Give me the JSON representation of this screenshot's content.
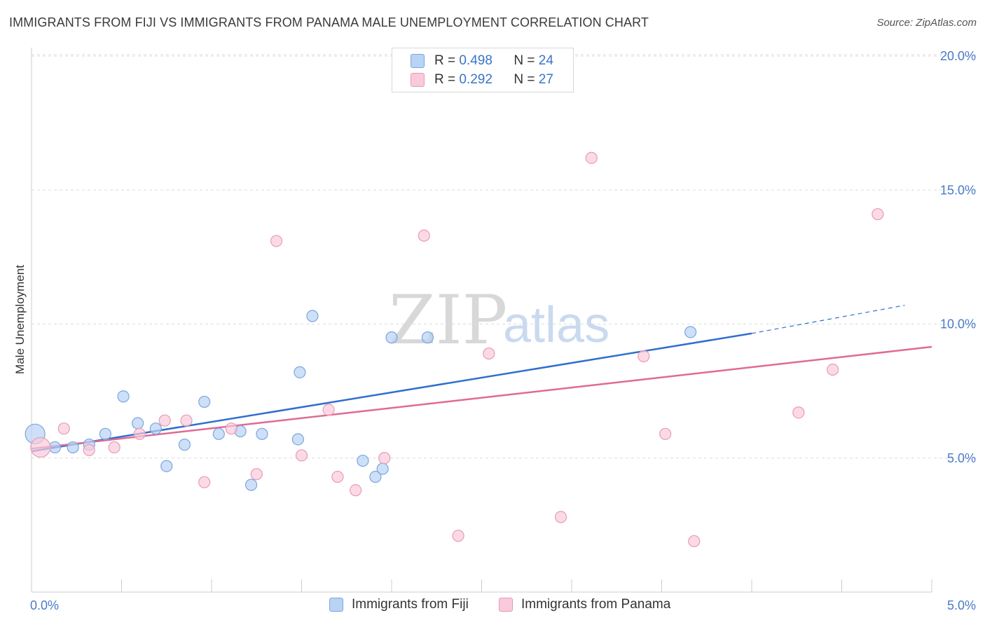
{
  "title": "IMMIGRANTS FROM FIJI VS IMMIGRANTS FROM PANAMA MALE UNEMPLOYMENT CORRELATION CHART",
  "source": "Source: ZipAtlas.com",
  "watermark": {
    "zip": "ZIP",
    "atlas": "atlas"
  },
  "legend": {
    "fiji": {
      "r_label": "R =",
      "r_value": "0.498",
      "n_label": "N =",
      "n_value": "24"
    },
    "panama": {
      "r_label": "R =",
      "r_value": "0.292",
      "n_label": "N =",
      "n_value": "27"
    }
  },
  "colors": {
    "fiji_fill": "#b8d3f3",
    "fiji_stroke": "#7aa6dc",
    "fiji_line": "#2f6fce",
    "panama_fill": "#f9cadb",
    "panama_stroke": "#e89ab5",
    "panama_line": "#e06a96",
    "grid": "#dcdcdc",
    "axis": "#cccccc"
  },
  "chart_data": {
    "type": "scatter",
    "title": "IMMIGRANTS FROM FIJI VS IMMIGRANTS FROM PANAMA MALE UNEMPLOYMENT CORRELATION CHART",
    "xlabel": "",
    "ylabel": "Male Unemployment",
    "xlim": [
      0,
      5
    ],
    "ylim": [
      0,
      20
    ],
    "x_tick_labels": [
      {
        "value": 0,
        "label": "0.0%"
      },
      {
        "value": 5,
        "label": "5.0%"
      }
    ],
    "y_tick_labels": [
      {
        "value": 5,
        "label": "5.0%"
      },
      {
        "value": 10,
        "label": "10.0%"
      },
      {
        "value": 15,
        "label": "15.0%"
      },
      {
        "value": 20,
        "label": "20.0%"
      }
    ],
    "series": [
      {
        "name": "Immigrants from Fiji",
        "r": 0.498,
        "n": 24,
        "trend": {
          "x0": 0.0,
          "y0": 5.25,
          "x1": 4.0,
          "y1": 9.65,
          "dash_to_x": 4.85,
          "dash_to_y": 10.7
        },
        "points": [
          {
            "x": 0.02,
            "y": 5.9,
            "big": true
          },
          {
            "x": 0.13,
            "y": 5.4
          },
          {
            "x": 0.23,
            "y": 5.4
          },
          {
            "x": 0.32,
            "y": 5.5
          },
          {
            "x": 0.41,
            "y": 5.9
          },
          {
            "x": 0.51,
            "y": 7.3
          },
          {
            "x": 0.59,
            "y": 6.3
          },
          {
            "x": 0.69,
            "y": 6.1
          },
          {
            "x": 0.75,
            "y": 4.7
          },
          {
            "x": 0.85,
            "y": 5.5
          },
          {
            "x": 0.96,
            "y": 7.1
          },
          {
            "x": 1.04,
            "y": 5.9
          },
          {
            "x": 1.16,
            "y": 6.0
          },
          {
            "x": 1.22,
            "y": 4.0
          },
          {
            "x": 1.28,
            "y": 5.9
          },
          {
            "x": 1.48,
            "y": 5.7
          },
          {
            "x": 1.49,
            "y": 8.2
          },
          {
            "x": 1.56,
            "y": 10.3
          },
          {
            "x": 1.84,
            "y": 4.9
          },
          {
            "x": 1.91,
            "y": 4.3
          },
          {
            "x": 1.95,
            "y": 4.6
          },
          {
            "x": 2.0,
            "y": 9.5
          },
          {
            "x": 2.2,
            "y": 9.5
          },
          {
            "x": 3.66,
            "y": 9.7
          }
        ]
      },
      {
        "name": "Immigrants from Panama",
        "r": 0.292,
        "n": 27,
        "trend": {
          "x0": 0.0,
          "y0": 5.35,
          "x1": 5.0,
          "y1": 9.15
        },
        "points": [
          {
            "x": 0.05,
            "y": 5.4,
            "big": true
          },
          {
            "x": 0.18,
            "y": 6.1
          },
          {
            "x": 0.32,
            "y": 5.3
          },
          {
            "x": 0.46,
            "y": 5.4
          },
          {
            "x": 0.6,
            "y": 5.9
          },
          {
            "x": 0.74,
            "y": 6.4
          },
          {
            "x": 0.86,
            "y": 6.4
          },
          {
            "x": 0.96,
            "y": 4.1
          },
          {
            "x": 1.11,
            "y": 6.1
          },
          {
            "x": 1.25,
            "y": 4.4
          },
          {
            "x": 1.36,
            "y": 13.1
          },
          {
            "x": 1.5,
            "y": 5.1
          },
          {
            "x": 1.65,
            "y": 6.8
          },
          {
            "x": 1.7,
            "y": 4.3
          },
          {
            "x": 1.8,
            "y": 3.8
          },
          {
            "x": 1.96,
            "y": 5.0
          },
          {
            "x": 2.18,
            "y": 13.3
          },
          {
            "x": 2.37,
            "y": 2.1
          },
          {
            "x": 2.54,
            "y": 8.9
          },
          {
            "x": 2.94,
            "y": 2.8
          },
          {
            "x": 3.11,
            "y": 16.2
          },
          {
            "x": 3.4,
            "y": 8.8
          },
          {
            "x": 3.52,
            "y": 5.9
          },
          {
            "x": 3.68,
            "y": 1.9
          },
          {
            "x": 4.26,
            "y": 6.7
          },
          {
            "x": 4.45,
            "y": 8.3
          },
          {
            "x": 4.7,
            "y": 14.1
          }
        ]
      }
    ]
  }
}
